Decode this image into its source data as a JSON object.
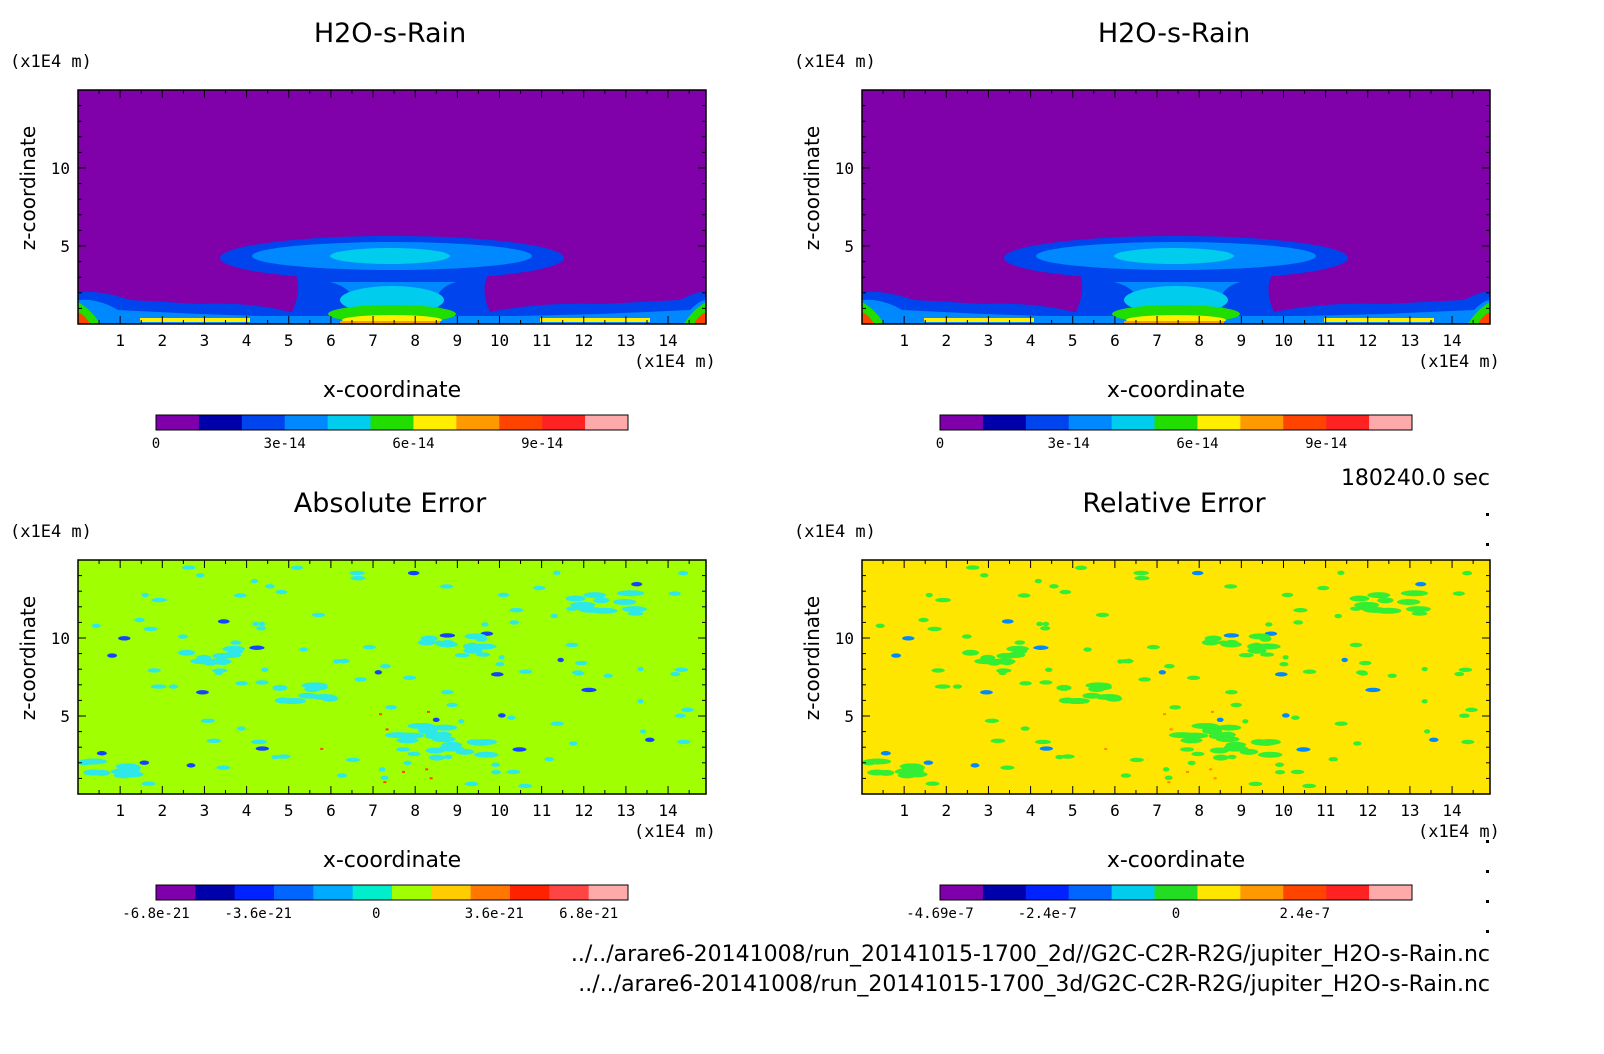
{
  "time_label": "180240.0 sec",
  "file_paths": [
    "../../arare6-20141008/run_20141015-1700_2d//G2C-C2R-R2G/jupiter_H2O-s-Rain.nc",
    "../../arare6-20141008/run_20141015-1700_3d/G2C-C2R-R2G/jupiter_H2O-s-Rain.nc"
  ],
  "chart_data": [
    {
      "id": "tl",
      "type": "heatmap",
      "title": "H2O-s-Rain",
      "xlabel": "x-coordinate",
      "ylabel": "z-coordinate",
      "x_unit": "(x1E4 m)",
      "y_unit": "(x1E4 m)",
      "xlim": [
        0,
        14.9
      ],
      "ylim": [
        0,
        15
      ],
      "xticks": [
        "1",
        "2",
        "3",
        "4",
        "5",
        "6",
        "7",
        "8",
        "9",
        "10",
        "11",
        "12",
        "13",
        "14"
      ],
      "yticks": [
        "5",
        "10"
      ],
      "background": "#8000aa",
      "colorbar": {
        "colors": [
          "#7f00aa",
          "#0000aa",
          "#0044ee",
          "#0088ff",
          "#00ccee",
          "#22dd00",
          "#ffee00",
          "#ff9900",
          "#ff4400",
          "#ff2222",
          "#ffaaaa"
        ],
        "labels": [
          "0",
          "3e-14",
          "6e-14",
          "9e-14"
        ],
        "label_positions": [
          0,
          3,
          6,
          9
        ]
      }
    },
    {
      "id": "tr",
      "type": "heatmap",
      "title": "H2O-s-Rain",
      "xlabel": "x-coordinate",
      "ylabel": "z-coordinate",
      "x_unit": "(x1E4 m)",
      "y_unit": "(x1E4 m)",
      "xlim": [
        0,
        14.9
      ],
      "ylim": [
        0,
        15
      ],
      "xticks": [
        "1",
        "2",
        "3",
        "4",
        "5",
        "6",
        "7",
        "8",
        "9",
        "10",
        "11",
        "12",
        "13",
        "14"
      ],
      "yticks": [
        "5",
        "10"
      ],
      "background": "#8000aa",
      "colorbar": {
        "colors": [
          "#7f00aa",
          "#0000aa",
          "#0044ee",
          "#0088ff",
          "#00ccee",
          "#22dd00",
          "#ffee00",
          "#ff9900",
          "#ff4400",
          "#ff2222",
          "#ffaaaa"
        ],
        "labels": [
          "0",
          "3e-14",
          "6e-14",
          "9e-14"
        ],
        "label_positions": [
          0,
          3,
          6,
          9
        ]
      }
    },
    {
      "id": "bl",
      "type": "heatmap",
      "title": "Absolute Error",
      "xlabel": "x-coordinate",
      "ylabel": "z-coordinate",
      "x_unit": "(x1E4 m)",
      "y_unit": "(x1E4 m)",
      "xlim": [
        0,
        14.9
      ],
      "ylim": [
        0,
        15
      ],
      "xticks": [
        "1",
        "2",
        "3",
        "4",
        "5",
        "6",
        "7",
        "8",
        "9",
        "10",
        "11",
        "12",
        "13",
        "14"
      ],
      "yticks": [
        "5",
        "10"
      ],
      "background": "#a0ff00",
      "colorbar": {
        "colors": [
          "#7f00aa",
          "#0000aa",
          "#0022ff",
          "#0066ff",
          "#00aaff",
          "#00eecc",
          "#a0ff00",
          "#ffcc00",
          "#ff7700",
          "#ff2200",
          "#ff4444",
          "#ffaaaa"
        ],
        "labels": [
          "-6.8e-21",
          "-3.6e-21",
          "0",
          "3.6e-21",
          "6.8e-21"
        ],
        "label_positions": [
          0,
          2.6,
          5.6,
          8.6,
          11
        ]
      }
    },
    {
      "id": "br",
      "type": "heatmap",
      "title": "Relative Error",
      "xlabel": "x-coordinate",
      "ylabel": "z-coordinate",
      "x_unit": "(x1E4 m)",
      "y_unit": "(x1E4 m)",
      "xlim": [
        0,
        14.9
      ],
      "ylim": [
        0,
        15
      ],
      "xticks": [
        "1",
        "2",
        "3",
        "4",
        "5",
        "6",
        "7",
        "8",
        "9",
        "10",
        "11",
        "12",
        "13",
        "14"
      ],
      "yticks": [
        "5",
        "10"
      ],
      "background": "#ffe600",
      "colorbar": {
        "colors": [
          "#7f00aa",
          "#0000aa",
          "#0022ff",
          "#0066ff",
          "#00ccee",
          "#22dd22",
          "#ffe600",
          "#ff9900",
          "#ff4400",
          "#ff2222",
          "#ffaaaa"
        ],
        "labels": [
          "-4.69e-7",
          "-2.4e-7",
          "0",
          "2.4e-7"
        ],
        "label_positions": [
          0,
          2.5,
          5.5,
          8.5
        ]
      }
    }
  ]
}
